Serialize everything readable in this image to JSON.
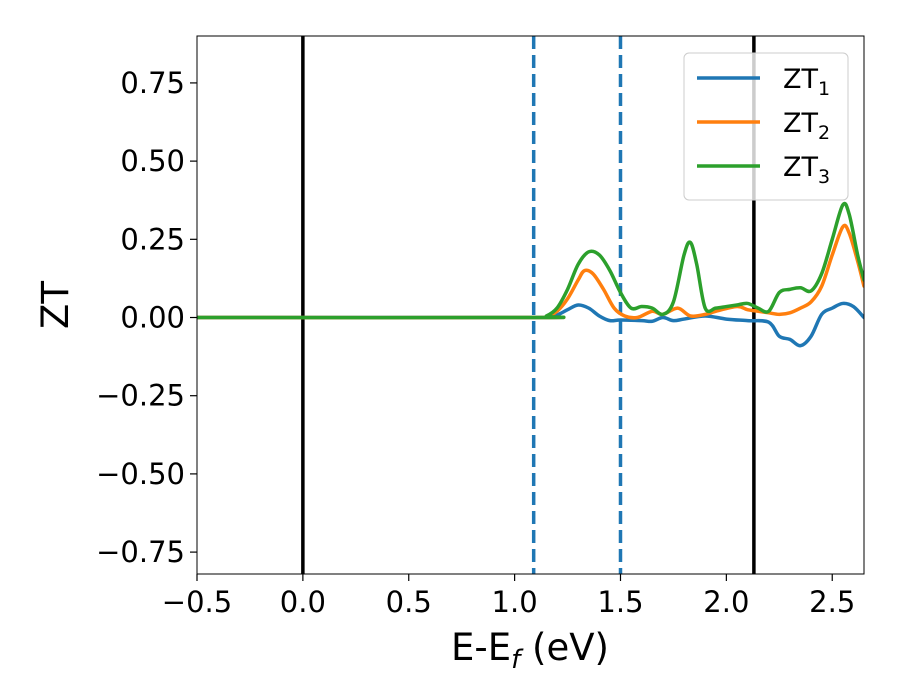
{
  "chart_data": {
    "type": "line",
    "xlabel": "E-E",
    "xlabel_sub": "f",
    "xlabel_suffix": " (eV)",
    "ylabel": "ZT",
    "xlim": [
      -0.5,
      2.65
    ],
    "ylim": [
      -0.82,
      0.9
    ],
    "xticks": [
      -0.5,
      0.0,
      0.5,
      1.0,
      1.5,
      2.0,
      2.5
    ],
    "xtick_labels": [
      "−0.5",
      "0.0",
      "0.5",
      "1.0",
      "1.5",
      "2.0",
      "2.5"
    ],
    "yticks": [
      0.75,
      0.5,
      0.25,
      0.0,
      -0.25,
      -0.5,
      -0.75
    ],
    "ytick_labels": [
      "0.75",
      "0.50",
      "0.25",
      "0.00",
      "−0.25",
      "−0.50",
      "−0.75"
    ],
    "legend_position": "top-right",
    "vlines": [
      {
        "x": 0.0,
        "style": "solid",
        "color": "#000000"
      },
      {
        "x": 2.13,
        "style": "solid",
        "color": "#000000"
      },
      {
        "x": 1.09,
        "style": "dashed",
        "color": "#1f77b4"
      },
      {
        "x": 1.5,
        "style": "dashed",
        "color": "#1f77b4"
      }
    ],
    "series": [
      {
        "name": "ZT",
        "name_sub": "1",
        "color": "#1f77b4",
        "points": [
          [
            -0.5,
            0
          ],
          [
            1.1,
            0
          ],
          [
            1.15,
            0.002
          ],
          [
            1.2,
            0.008
          ],
          [
            1.25,
            0.025
          ],
          [
            1.3,
            0.04
          ],
          [
            1.35,
            0.03
          ],
          [
            1.4,
            0.005
          ],
          [
            1.45,
            -0.01
          ],
          [
            1.5,
            -0.008
          ],
          [
            1.6,
            -0.01
          ],
          [
            1.65,
            -0.012
          ],
          [
            1.7,
            0.0
          ],
          [
            1.75,
            -0.01
          ],
          [
            1.8,
            -0.005
          ],
          [
            1.9,
            0.005
          ],
          [
            2.0,
            -0.005
          ],
          [
            2.1,
            -0.01
          ],
          [
            2.2,
            -0.015
          ],
          [
            2.25,
            -0.06
          ],
          [
            2.3,
            -0.07
          ],
          [
            2.35,
            -0.09
          ],
          [
            2.4,
            -0.06
          ],
          [
            2.45,
            0.01
          ],
          [
            2.5,
            0.03
          ],
          [
            2.55,
            0.045
          ],
          [
            2.6,
            0.035
          ],
          [
            2.65,
            0.0
          ]
        ]
      },
      {
        "name": "ZT",
        "name_sub": "2",
        "color": "#ff7f0e",
        "points": [
          [
            -0.5,
            0
          ],
          [
            1.1,
            0
          ],
          [
            1.15,
            0.003
          ],
          [
            1.2,
            0.02
          ],
          [
            1.25,
            0.06
          ],
          [
            1.3,
            0.12
          ],
          [
            1.33,
            0.15
          ],
          [
            1.37,
            0.14
          ],
          [
            1.42,
            0.09
          ],
          [
            1.47,
            0.03
          ],
          [
            1.52,
            0.005
          ],
          [
            1.58,
            0.0
          ],
          [
            1.65,
            0.02
          ],
          [
            1.7,
            0.01
          ],
          [
            1.77,
            0.03
          ],
          [
            1.83,
            0.005
          ],
          [
            1.9,
            0.01
          ],
          [
            1.95,
            0.02
          ],
          [
            2.05,
            0.035
          ],
          [
            2.1,
            0.025
          ],
          [
            2.15,
            0.02
          ],
          [
            2.2,
            0.015
          ],
          [
            2.25,
            0.01
          ],
          [
            2.3,
            0.015
          ],
          [
            2.35,
            0.03
          ],
          [
            2.4,
            0.05
          ],
          [
            2.45,
            0.1
          ],
          [
            2.5,
            0.2
          ],
          [
            2.55,
            0.29
          ],
          [
            2.58,
            0.27
          ],
          [
            2.62,
            0.18
          ],
          [
            2.65,
            0.1
          ]
        ]
      },
      {
        "name": "ZT",
        "name_sub": "3",
        "color": "#2ca02c",
        "points": [
          [
            -0.5,
            0
          ],
          [
            1.1,
            0
          ],
          [
            1.15,
            0.005
          ],
          [
            1.2,
            0.03
          ],
          [
            1.25,
            0.09
          ],
          [
            1.3,
            0.17
          ],
          [
            1.35,
            0.21
          ],
          [
            1.4,
            0.2
          ],
          [
            1.45,
            0.15
          ],
          [
            1.5,
            0.08
          ],
          [
            1.55,
            0.03
          ],
          [
            1.6,
            0.035
          ],
          [
            1.65,
            0.03
          ],
          [
            1.7,
            0.01
          ],
          [
            1.75,
            0.05
          ],
          [
            1.8,
            0.2
          ],
          [
            1.83,
            0.24
          ],
          [
            1.86,
            0.17
          ],
          [
            1.9,
            0.03
          ],
          [
            1.95,
            0.03
          ],
          [
            2.0,
            0.035
          ],
          [
            2.05,
            0.04
          ],
          [
            2.1,
            0.045
          ],
          [
            2.15,
            0.03
          ],
          [
            2.2,
            0.02
          ],
          [
            2.25,
            0.08
          ],
          [
            2.3,
            0.09
          ],
          [
            2.35,
            0.095
          ],
          [
            2.4,
            0.085
          ],
          [
            2.45,
            0.14
          ],
          [
            2.5,
            0.25
          ],
          [
            2.55,
            0.36
          ],
          [
            2.58,
            0.33
          ],
          [
            2.62,
            0.2
          ],
          [
            2.65,
            0.12
          ]
        ]
      }
    ]
  }
}
